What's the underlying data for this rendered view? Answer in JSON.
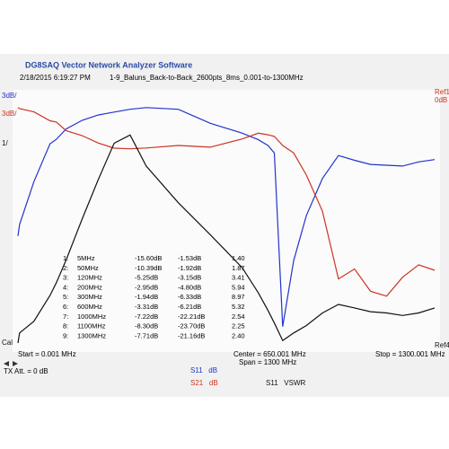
{
  "header": {
    "title": "DG8SAQ Vector Network Analyzer Software",
    "timestamp": "2/18/2015   6:19:27 PM",
    "file": "1-9_Baluns_Back-to-Back_2600pts_8ms_0.001-to-1300MHz"
  },
  "chart_data": {
    "type": "line",
    "xlim": [
      0.001,
      1300.001
    ],
    "ylim": [
      -30,
      0
    ],
    "y2lim": [
      1,
      10.85
    ],
    "scale_labels": [
      {
        "text": "3dB/",
        "color": "#2233cc"
      },
      {
        "text": "3dB/",
        "color": "#cc3322"
      },
      {
        "text": "1/",
        "color": "#111111"
      },
      {
        "text": "Cal",
        "color": "#111111"
      }
    ],
    "ref_labels": [
      {
        "text": "Ref1",
        "color": "#cc3322"
      },
      {
        "text": "0dB",
        "color": "#cc3322"
      },
      {
        "text": "Ref4",
        "color": "#111111"
      }
    ],
    "x": [
      0.001,
      5,
      50,
      100,
      120,
      150,
      200,
      250,
      300,
      350,
      400,
      500,
      600,
      700,
      750,
      780,
      800,
      826,
      860,
      900,
      950,
      1000,
      1050,
      1100,
      1150,
      1200,
      1250,
      1300
    ],
    "series": [
      {
        "name": "S11   dB",
        "color": "#2233cc",
        "values": [
          -17,
          -15.6,
          -10.39,
          -5.8,
          -5.25,
          -4.0,
          -2.95,
          -2.3,
          -1.94,
          -1.6,
          -1.4,
          -1.6,
          -3.31,
          -4.5,
          -5.3,
          -6.0,
          -6.9,
          -28,
          -20,
          -14.5,
          -10,
          -7.22,
          -7.8,
          -8.3,
          -8.4,
          -8.5,
          -8.0,
          -7.71
        ]
      },
      {
        "name": "S21   dB",
        "color": "#cc3322",
        "values": [
          -1.4,
          -1.53,
          -1.92,
          -3.0,
          -3.15,
          -4.2,
          -4.8,
          -5.7,
          -6.33,
          -6.4,
          -6.3,
          -6.0,
          -6.21,
          -5.2,
          -4.5,
          -4.7,
          -4.9,
          -6.0,
          -6.9,
          -9.6,
          -14,
          -22.21,
          -21,
          -23.7,
          -24.3,
          -22,
          -20.5,
          -21.16
        ]
      },
      {
        "name": "S11   VSWR",
        "color": "#111111",
        "axis": "y2",
        "values": [
          1.0,
          1.4,
          1.87,
          2.9,
          3.41,
          4.3,
          5.94,
          7.5,
          8.97,
          9.3,
          8.06,
          6.6,
          5.32,
          4.0,
          3.0,
          2.3,
          1.8,
          1.1,
          1.4,
          1.7,
          2.2,
          2.54,
          2.4,
          2.25,
          2.2,
          2.1,
          2.2,
          2.4
        ]
      }
    ]
  },
  "markers": {
    "rows": [
      [
        "1:",
        "5MHz",
        "-15.60dB",
        "-1.53dB",
        "1.40"
      ],
      [
        "2:",
        "50MHz",
        "-10.39dB",
        "-1.92dB",
        "1.87"
      ],
      [
        "3:",
        "120MHz",
        "-5.25dB",
        "-3.15dB",
        "3.41"
      ],
      [
        "4:",
        "200MHz",
        "-2.95dB",
        "-4.80dB",
        "5.94"
      ],
      [
        "5:",
        "300MHz",
        "-1.94dB",
        "-6.33dB",
        "8.97"
      ],
      [
        "6:",
        "600MHz",
        "-3.31dB",
        "-6.21dB",
        "5.32"
      ],
      [
        "7:",
        "1000MHz",
        "-7.22dB",
        "-22.21dB",
        "2.54"
      ],
      [
        "8:",
        "1100MHz",
        "-8.30dB",
        "-23.70dB",
        "2.25"
      ],
      [
        "9:",
        "1300MHz",
        "-7.71dB",
        "-21.16dB",
        "2.40"
      ]
    ]
  },
  "footer": {
    "start": "Start = 0.001 MHz",
    "center": "Center = 650.001 MHz",
    "span": "Span = 1300 MHz",
    "stop": "Stop = 1300.001 MHz",
    "tx_att": "TX Att. = 0 dB"
  }
}
